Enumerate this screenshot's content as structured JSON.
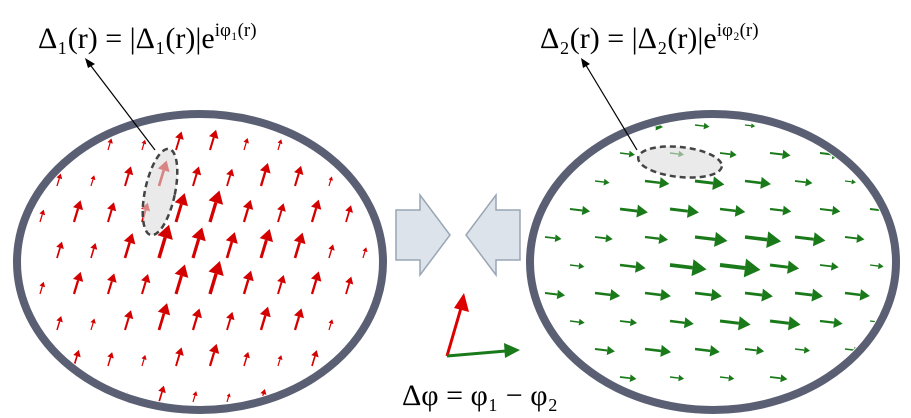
{
  "left_label": {
    "base": "Δ₁(r) = |Δ₁(r)|e",
    "exponent": "iφ₁(r)"
  },
  "right_label": {
    "base": "Δ₂(r) = |Δ₂(r)|e",
    "exponent": "iφ₂(r)"
  },
  "phase_label": "Δφ = φ₁ − φ₂"
}
